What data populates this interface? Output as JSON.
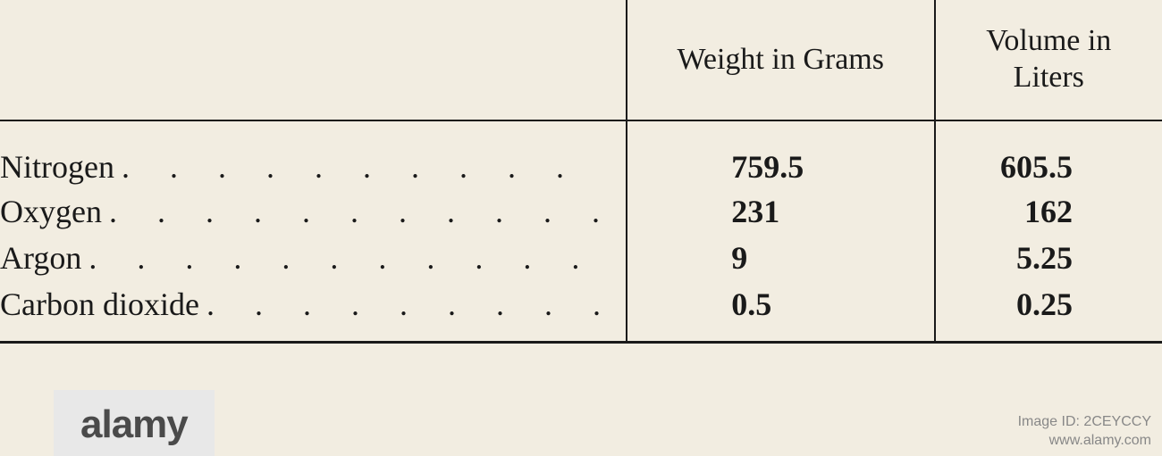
{
  "table": {
    "headers": {
      "label": "",
      "weight": "Weight in Grams",
      "volume_line1": "Volume in",
      "volume_line2": "Liters"
    },
    "rows": [
      {
        "label": "Nitrogen",
        "dots": ". . . . . . . . . .",
        "weight": "759.5",
        "volume": "605.5"
      },
      {
        "label": "Oxygen",
        "dots": ". . . . . . . . . . .",
        "weight": "231",
        "volume": "162"
      },
      {
        "label": "Argon",
        "dots": ". . . . . . . . . . .",
        "weight": "9",
        "volume": "5.25"
      },
      {
        "label": "Carbon dioxide",
        "dots": ". . . . . . . . .",
        "weight": "0.5",
        "volume": "0.25"
      }
    ]
  },
  "watermark": {
    "logo_text": "alamy",
    "id_line1": "Image ID: 2CEYCCY",
    "id_line2": "www.alamy.com"
  },
  "styling": {
    "background_color": "#f2ede1",
    "text_color": "#1a1a1a",
    "border_color": "#1a1a1a",
    "font_family": "Georgia, Times New Roman, serif",
    "header_fontsize": 34,
    "body_fontsize": 36,
    "watermark_bg": "#e8e8e8",
    "watermark_text_color": "#4a4a4a",
    "id_text_color": "#888"
  }
}
